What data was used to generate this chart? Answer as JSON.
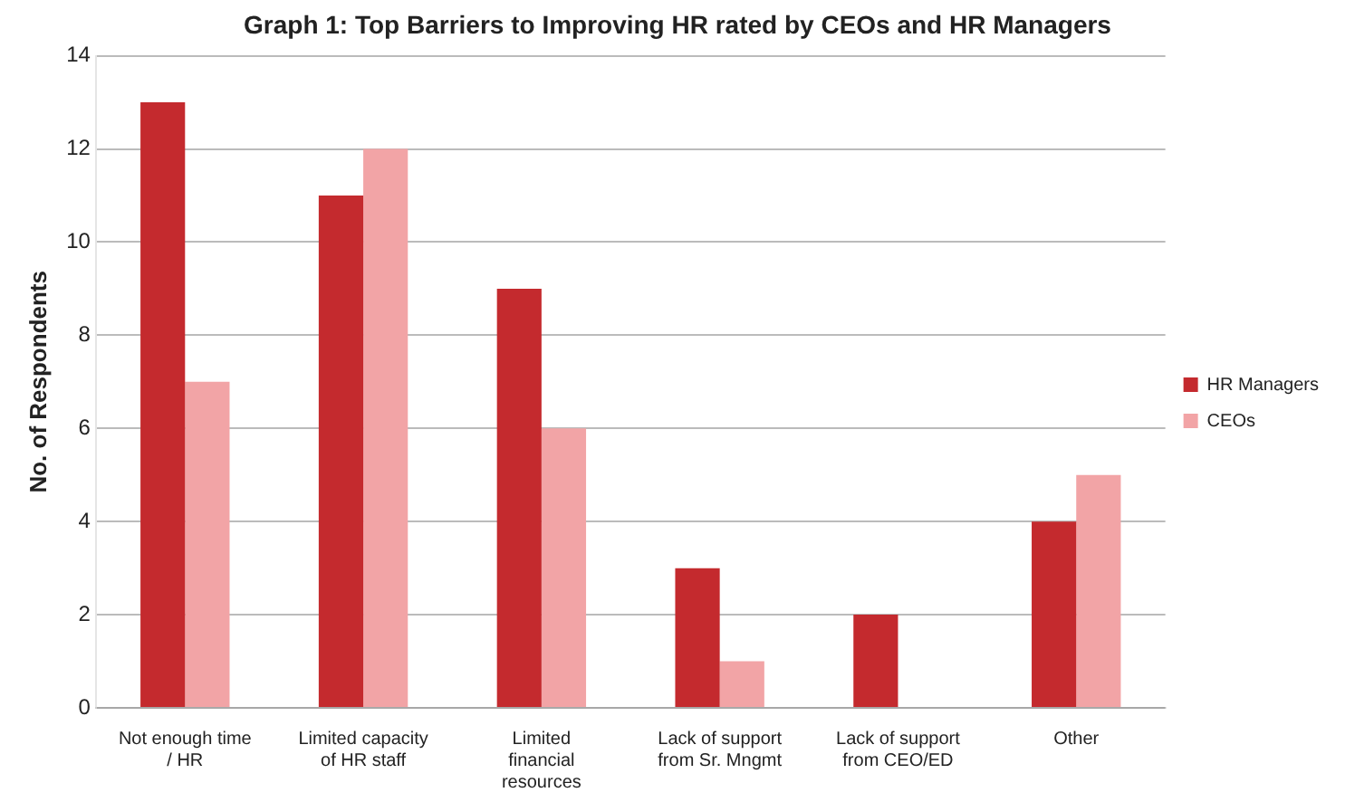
{
  "chart_data": {
    "type": "bar",
    "title": "Graph 1: Top Barriers to Improving HR rated by CEOs and HR Managers",
    "ylabel": "No. of Respondents",
    "categories": [
      "Not enough time / HR",
      "Limited capacity of HR staff",
      "Limited financial resources",
      "Lack of support from Sr. Mngmt",
      "Lack of support from CEO/ED",
      "Other"
    ],
    "series": [
      {
        "name": "HR Managers",
        "color": "#c42a2e",
        "values": [
          13,
          11,
          9,
          3,
          2,
          4
        ]
      },
      {
        "name": "CEOs",
        "color": "#f2a4a6",
        "values": [
          7,
          12,
          6,
          1,
          0,
          5
        ]
      }
    ],
    "ylim": [
      0,
      14
    ],
    "yticks": [
      0,
      2,
      4,
      6,
      8,
      10,
      12,
      14
    ],
    "grid": "y",
    "legend": "right"
  }
}
